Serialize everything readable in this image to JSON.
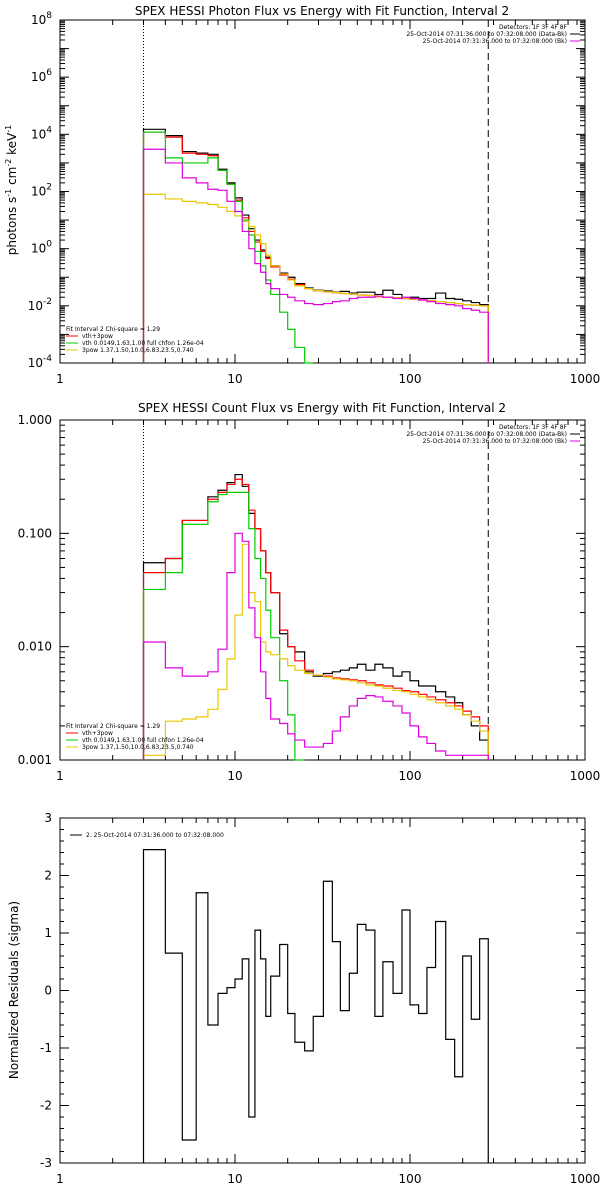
{
  "chart_data": [
    {
      "type": "line",
      "title": "SPEX HESSI Photon Flux vs Energy with Fit Function, Interval 2",
      "ylabel": "photons s$^{-1}$ cm$^{-2}$ keV$^{-1}$",
      "xlabel": "",
      "xscale": "log",
      "yscale": "log",
      "xlim": [
        1,
        1000
      ],
      "ylim": [
        0.0001,
        100000000
      ],
      "x_tick_labels": [
        "1",
        "10",
        "100",
        "1000"
      ],
      "y_tick_labels": [
        "10^-4",
        "10^-2",
        "10^0",
        "10^2",
        "10^4",
        "10^6",
        "10^8"
      ],
      "legend_top": [
        "Detectors: 1F 3F 4F 8F",
        "25-Oct-2014 07:31:36.000 to 07:32:08.000 (Data-Bk)",
        "25-Oct-2014 07:31:36.000 to 07:32:08.000 (Bk)"
      ],
      "legend_bottom": [
        "Fit Interval 2   Chi-square = 1.29",
        "vth+3pow",
        "vth 0.0149,1.63,1.00  full chfon 1.26e-04",
        "3pow 1.37,1.50,10.0,6.83,23.5,0.740"
      ],
      "vlines": [
        {
          "x": 3,
          "style": "dotted"
        },
        {
          "x": 280,
          "style": "dashed"
        }
      ],
      "bin_edges": [
        3,
        4,
        5,
        6,
        7,
        8,
        9,
        10,
        11,
        12,
        13,
        14,
        15,
        16,
        18,
        20,
        22,
        25,
        28,
        32,
        36,
        40,
        45,
        50,
        56,
        63,
        70,
        80,
        90,
        100,
        112,
        125,
        140,
        160,
        180,
        200,
        224,
        250,
        280
      ],
      "series": [
        {
          "name": "data",
          "color": "#000000",
          "values": [
            15000.0,
            9000,
            2500,
            2200,
            2000,
            600,
            200,
            60,
            15,
            5,
            2,
            0.9,
            0.5,
            0.25,
            0.14,
            0.1,
            0.06,
            0.042,
            0.035,
            0.033,
            0.03,
            0.032,
            0.028,
            0.03,
            0.03,
            0.025,
            0.035,
            0.025,
            0.018,
            0.02,
            0.018,
            0.018,
            0.028,
            0.018,
            0.017,
            0.015,
            0.013,
            0.011
          ]
        },
        {
          "name": "vth+3pow",
          "color": "#ff0000",
          "values": [
            12000.0,
            8000,
            2200,
            2000,
            1800,
            550,
            180,
            50,
            12,
            4,
            1.7,
            0.8,
            0.45,
            0.23,
            0.12,
            0.085,
            0.055,
            0.04,
            0.034,
            0.031,
            0.029,
            0.027,
            0.026,
            0.024,
            0.023,
            0.021,
            0.02,
            0.019,
            0.018,
            0.017,
            0.016,
            0.015,
            0.014,
            0.013,
            0.012,
            0.011,
            0.0105,
            0.01
          ]
        },
        {
          "name": "vth",
          "color": "#00cc00",
          "values": [
            12000.0,
            1500,
            1000,
            1000,
            1500,
            550,
            180,
            45,
            10,
            3,
            0.8,
            0.25,
            0.08,
            0.025,
            0.006,
            0.0015,
            0.00035,
            0.0001
          ]
        },
        {
          "name": "3pow",
          "color": "#e6c800",
          "values": [
            80,
            55,
            45,
            40,
            35,
            28,
            20,
            14,
            9,
            6,
            3,
            1.5,
            0.6,
            0.25,
            0.13,
            0.08,
            0.05,
            0.04,
            0.034,
            0.031,
            0.029,
            0.027,
            0.026,
            0.024,
            0.023,
            0.021,
            0.02,
            0.019,
            0.018,
            0.017,
            0.016,
            0.015,
            0.014,
            0.013,
            0.012,
            0.011,
            0.0105,
            0.01
          ]
        },
        {
          "name": "Bk",
          "color": "#e000e0",
          "values": [
            3000,
            1000,
            300,
            200,
            120,
            110,
            45,
            20,
            4,
            1,
            0.3,
            0.15,
            0.06,
            0.04,
            0.025,
            0.02,
            0.015,
            0.012,
            0.011,
            0.012,
            0.014,
            0.015,
            0.018,
            0.02,
            0.02,
            0.022,
            0.02,
            0.018,
            0.02,
            0.018,
            0.016,
            0.014,
            0.012,
            0.011,
            0.01,
            0.008,
            0.007,
            0.006
          ]
        }
      ]
    },
    {
      "type": "line",
      "title": "SPEX HESSI Count Flux vs Energy with Fit Function, Interval 2",
      "xscale": "log",
      "yscale": "log",
      "xlim": [
        1,
        1000
      ],
      "ylim": [
        0.001,
        1.0
      ],
      "x_tick_labels": [
        "1",
        "10",
        "100",
        "1000"
      ],
      "y_tick_labels": [
        "0.001",
        "0.010",
        "0.100",
        "1.000"
      ],
      "legend_top": [
        "Detectors: 1F 3F 4F 8F",
        "25-Oct-2014 07:31:36.000 to 07:32:08.000 (Data-Bk)",
        "25-Oct-2014 07:31:36.000 to 07:32:08.000 (Bk)"
      ],
      "legend_bottom": [
        "Fit Interval 2   Chi-square = 1.29",
        "vth+3pow",
        "vth 0.0149,1.63,1.00  full chfon 1.26e-04",
        "3pow 1.37,1.50,10.0,6.83,23.5,0.740"
      ],
      "vlines": [
        {
          "x": 3,
          "style": "dotted"
        },
        {
          "x": 280,
          "style": "dashed"
        }
      ],
      "bin_edges": [
        3,
        4,
        5,
        6,
        7,
        8,
        9,
        10,
        11,
        12,
        13,
        14,
        15,
        16,
        18,
        20,
        22,
        25,
        28,
        32,
        36,
        40,
        45,
        50,
        56,
        63,
        70,
        80,
        90,
        100,
        112,
        125,
        140,
        160,
        180,
        200,
        224,
        250,
        280
      ],
      "series": [
        {
          "name": "data",
          "color": "#000000",
          "values": [
            0.055,
            0.06,
            0.13,
            0.13,
            0.21,
            0.24,
            0.28,
            0.33,
            0.26,
            0.15,
            0.11,
            0.07,
            0.045,
            0.03,
            0.013,
            0.01,
            0.009,
            0.006,
            0.0055,
            0.0058,
            0.006,
            0.0062,
            0.0065,
            0.007,
            0.0062,
            0.007,
            0.0065,
            0.0055,
            0.006,
            0.005,
            0.0045,
            0.0045,
            0.004,
            0.0036,
            0.0032,
            0.0025,
            0.002,
            0.0015
          ]
        },
        {
          "name": "vth+3pow",
          "color": "#ff0000",
          "values": [
            0.045,
            0.06,
            0.13,
            0.13,
            0.2,
            0.23,
            0.27,
            0.3,
            0.27,
            0.16,
            0.11,
            0.07,
            0.045,
            0.03,
            0.014,
            0.01,
            0.0075,
            0.0062,
            0.0056,
            0.0055,
            0.0053,
            0.0052,
            0.0051,
            0.005,
            0.0048,
            0.0046,
            0.0045,
            0.0043,
            0.0041,
            0.004,
            0.0038,
            0.0036,
            0.0034,
            0.0032,
            0.003,
            0.0027,
            0.0024,
            0.002
          ]
        },
        {
          "name": "vth",
          "color": "#00cc00",
          "values": [
            0.032,
            0.045,
            0.12,
            0.12,
            0.19,
            0.22,
            0.23,
            0.23,
            0.23,
            0.11,
            0.06,
            0.04,
            0.021,
            0.012,
            0.005,
            0.0025,
            0.001
          ]
        },
        {
          "name": "3pow",
          "color": "#e6c800",
          "values": [
            0.0011,
            0.0022,
            0.0023,
            0.0024,
            0.0028,
            0.0042,
            0.0078,
            0.019,
            0.08,
            0.03,
            0.025,
            0.011,
            0.009,
            0.0085,
            0.0078,
            0.0068,
            0.0062,
            0.0058,
            0.0056,
            0.0054,
            0.0052,
            0.0051,
            0.005,
            0.0048,
            0.0046,
            0.0045,
            0.0043,
            0.0041,
            0.004,
            0.0038,
            0.0036,
            0.0034,
            0.0032,
            0.003,
            0.0028,
            0.0025,
            0.0022,
            0.0018
          ]
        },
        {
          "name": "Bk",
          "color": "#e000e0",
          "values": [
            0.011,
            0.0065,
            0.0055,
            0.0055,
            0.006,
            0.0095,
            0.045,
            0.1,
            0.085,
            0.022,
            0.012,
            0.006,
            0.0035,
            0.0023,
            0.0021,
            0.0017,
            0.0015,
            0.0013,
            0.0013,
            0.0014,
            0.0018,
            0.0024,
            0.003,
            0.0035,
            0.0037,
            0.0036,
            0.0033,
            0.003,
            0.0026,
            0.002,
            0.0016,
            0.0014,
            0.0012,
            0.0011,
            0.0011,
            0.0011,
            0.0011,
            0.0011
          ]
        }
      ]
    },
    {
      "type": "line",
      "title": "",
      "ylabel": "Normalized Residuals (sigma)",
      "xlabel": "",
      "xscale": "log",
      "yscale": "linear",
      "xlim": [
        1,
        1000
      ],
      "ylim": [
        -3,
        3
      ],
      "x_tick_labels": [
        "1",
        "10",
        "100",
        "1000"
      ],
      "y_tick_labels": [
        "-3",
        "-2",
        "-1",
        "0",
        "1",
        "2",
        "3"
      ],
      "legend": "2. 25-Oct-2014 07:31:36.000 to 07:32:08.000",
      "bin_edges": [
        3,
        4,
        5,
        6,
        7,
        8,
        9,
        10,
        11,
        12,
        13,
        14,
        15,
        16,
        18,
        20,
        22,
        25,
        28,
        32,
        36,
        40,
        45,
        50,
        56,
        63,
        70,
        80,
        90,
        100,
        112,
        125,
        140,
        160,
        180,
        200,
        224,
        250,
        280
      ],
      "series": [
        {
          "name": "residuals",
          "color": "#000000",
          "values": [
            2.45,
            0.65,
            -2.6,
            1.7,
            -0.6,
            -0.05,
            0.05,
            0.2,
            0.55,
            -2.2,
            1.05,
            0.55,
            -0.45,
            0.25,
            0.8,
            -0.4,
            -0.9,
            -1.05,
            -0.45,
            1.9,
            0.85,
            -0.35,
            0.3,
            1.15,
            1.05,
            -0.45,
            0.5,
            -0.05,
            1.4,
            -0.25,
            -0.4,
            0.4,
            1.2,
            -0.85,
            -1.5,
            0.6,
            -0.5,
            0.9
          ]
        }
      ]
    }
  ]
}
